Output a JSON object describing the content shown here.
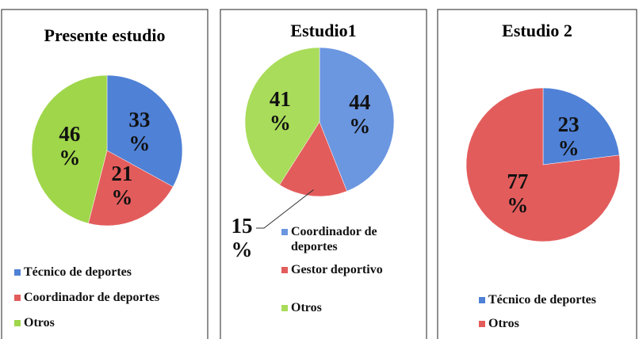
{
  "chart_data": [
    {
      "type": "pie",
      "title": "Presente estudio",
      "categories": [
        "Técnico de deportes",
        "Coordinador de deportes",
        "Otros"
      ],
      "values": [
        33,
        21,
        46
      ],
      "value_labels": [
        "33 %",
        "21 %",
        "46 %"
      ],
      "colors": [
        "#4f81d6",
        "#e35c5c",
        "#9fd64a"
      ]
    },
    {
      "type": "pie",
      "title": "Estudio1",
      "categories": [
        "Coordinador de deportes",
        "Gestor deportivo",
        "Otros"
      ],
      "values": [
        44,
        15,
        41
      ],
      "value_labels": [
        "44 %",
        "15 %",
        "41 %"
      ],
      "colors": [
        "#6b96e0",
        "#e35c5c",
        "#a9dc5a"
      ]
    },
    {
      "type": "pie",
      "title": "Estudio 2",
      "categories": [
        "Técnico de deportes",
        "Otros"
      ],
      "values": [
        23,
        77
      ],
      "value_labels": [
        "23 %",
        "77 %"
      ],
      "colors": [
        "#4f81d6",
        "#e35c5c"
      ]
    }
  ]
}
